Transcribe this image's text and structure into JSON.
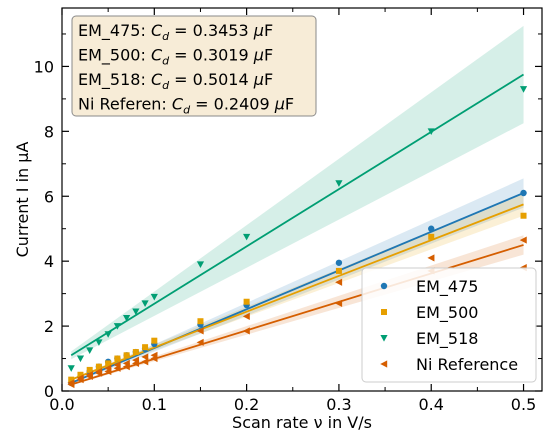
{
  "chart_data": {
    "type": "scatter",
    "xlabel": "Scan rate ν in V/s",
    "ylabel": "Current I in μA",
    "xlim": [
      0,
      0.52
    ],
    "ylim": [
      0,
      11.8
    ],
    "xticks": [
      0.0,
      0.1,
      0.2,
      0.3,
      0.4,
      0.5
    ],
    "xtick_labels": [
      "0.0",
      "0.1",
      "0.2",
      "0.3",
      "0.4",
      "0.5"
    ],
    "yticks": [
      0,
      2,
      4,
      6,
      8,
      10
    ],
    "ytick_labels": [
      "0",
      "2",
      "4",
      "6",
      "8",
      "10"
    ],
    "grid": false,
    "legend_position": "bottom-right",
    "annotation": {
      "lines": [
        {
          "name": "EM_475",
          "value": "0.3453"
        },
        {
          "name": "EM_500",
          "value": "0.3019"
        },
        {
          "name": "EM_518",
          "value": "0.5014"
        },
        {
          "name": "Ni Referen",
          "value": "0.2409"
        }
      ],
      "symbol": "C",
      "subscript": "d",
      "unit": "μF",
      "background": "#f7ecd7"
    },
    "series": [
      {
        "name": "EM_475",
        "color": "#1f77b4",
        "marker": "circle",
        "x": [
          0.01,
          0.02,
          0.03,
          0.04,
          0.05,
          0.06,
          0.07,
          0.08,
          0.09,
          0.1,
          0.15,
          0.2,
          0.3,
          0.4,
          0.5
        ],
        "y": [
          0.25,
          0.45,
          0.6,
          0.75,
          0.9,
          1.0,
          1.1,
          1.2,
          1.3,
          1.45,
          2.05,
          2.65,
          3.95,
          5.0,
          6.1
        ],
        "fit": [
          [
            0.01,
            0.25
          ],
          [
            0.5,
            6.1
          ]
        ],
        "band": 0.45
      },
      {
        "name": "EM_500",
        "color": "#e69f00",
        "marker": "square",
        "x": [
          0.01,
          0.02,
          0.03,
          0.04,
          0.05,
          0.06,
          0.07,
          0.08,
          0.09,
          0.1,
          0.15,
          0.2,
          0.3,
          0.4,
          0.5
        ],
        "y": [
          0.35,
          0.5,
          0.65,
          0.75,
          0.85,
          1.0,
          1.1,
          1.2,
          1.35,
          1.55,
          2.15,
          2.75,
          3.7,
          4.75,
          5.4
        ],
        "fit": [
          [
            0.01,
            0.35
          ],
          [
            0.5,
            5.75
          ]
        ],
        "band": 0.35
      },
      {
        "name": "EM_518",
        "color": "#009e73",
        "marker": "triangle-down",
        "x": [
          0.01,
          0.02,
          0.03,
          0.04,
          0.05,
          0.06,
          0.07,
          0.08,
          0.09,
          0.1,
          0.15,
          0.2,
          0.3,
          0.4,
          0.5
        ],
        "y": [
          0.7,
          1.0,
          1.25,
          1.5,
          1.75,
          2.0,
          2.25,
          2.45,
          2.7,
          2.9,
          3.9,
          4.75,
          6.4,
          8.0,
          9.3
        ],
        "fit": [
          [
            0.01,
            1.1
          ],
          [
            0.5,
            9.75
          ]
        ],
        "band": 1.5
      },
      {
        "name": "Ni Reference",
        "color": "#d55e00",
        "marker": "triangle-left",
        "x": [
          0.01,
          0.02,
          0.03,
          0.04,
          0.05,
          0.06,
          0.07,
          0.08,
          0.09,
          0.1,
          0.15,
          0.2,
          0.3,
          0.4,
          0.5
        ],
        "y": [
          0.2,
          0.35,
          0.45,
          0.55,
          0.6,
          0.7,
          0.75,
          0.85,
          0.9,
          1.0,
          1.5,
          1.85,
          2.7,
          4.1,
          3.8
        ],
        "y2": [
          0.25,
          0.4,
          0.5,
          0.6,
          0.7,
          0.8,
          0.85,
          0.95,
          1.05,
          1.1,
          1.85,
          2.3,
          3.35,
          3.7,
          4.65
        ],
        "fit": [
          [
            0.01,
            0.2
          ],
          [
            0.5,
            4.5
          ]
        ],
        "band": 0.3
      }
    ]
  }
}
